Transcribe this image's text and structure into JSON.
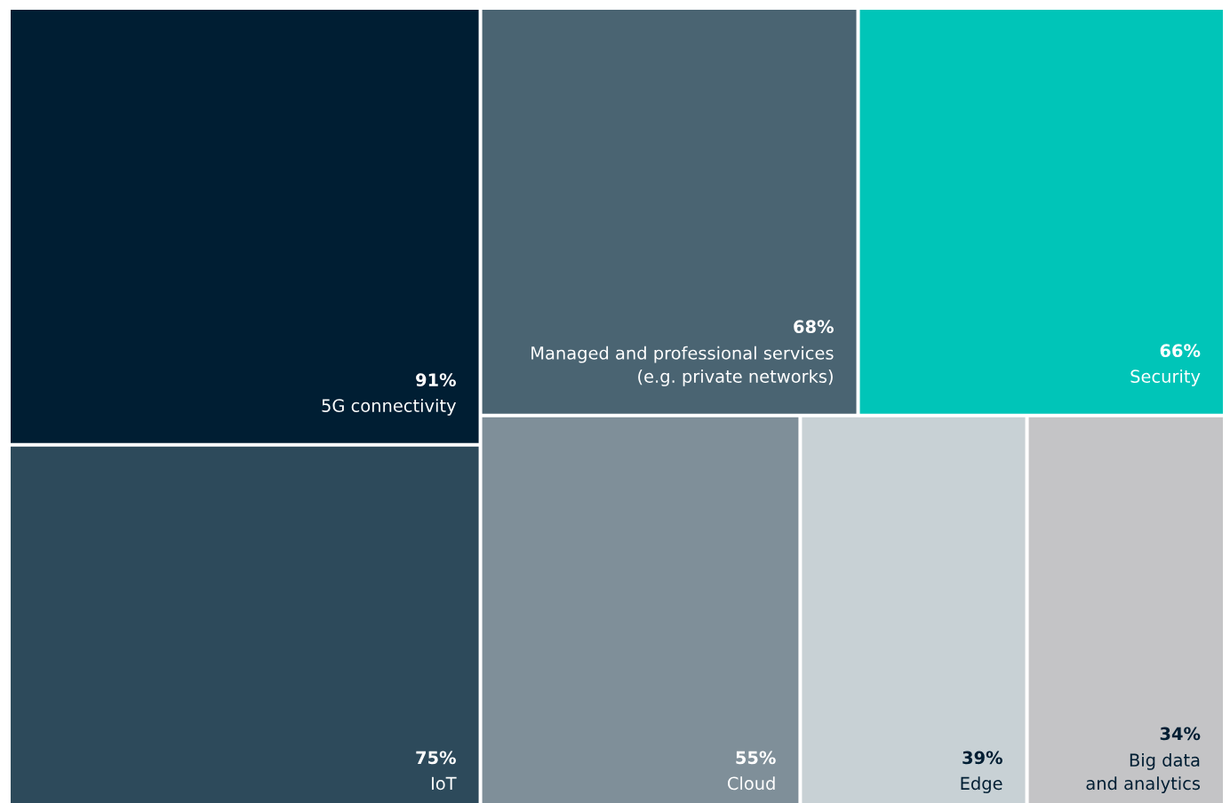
{
  "chart_data": {
    "type": "other",
    "categories": [
      "5G connectivity",
      "IoT",
      "Managed and professional services\n(e.g. private networks)",
      "Security",
      "Cloud",
      "Edge",
      "Big data\nand analytics"
    ],
    "values": [
      91,
      75,
      68,
      66,
      55,
      39,
      34
    ],
    "value_labels": [
      "91%",
      "75%",
      "68%",
      "66%",
      "55%",
      "39%",
      "34%"
    ],
    "colors": [
      "#001e33",
      "#2d4a5b",
      "#4a6472",
      "#00c5b8",
      "#7f8f99",
      "#c8d1d5",
      "#c4c4c6"
    ]
  }
}
